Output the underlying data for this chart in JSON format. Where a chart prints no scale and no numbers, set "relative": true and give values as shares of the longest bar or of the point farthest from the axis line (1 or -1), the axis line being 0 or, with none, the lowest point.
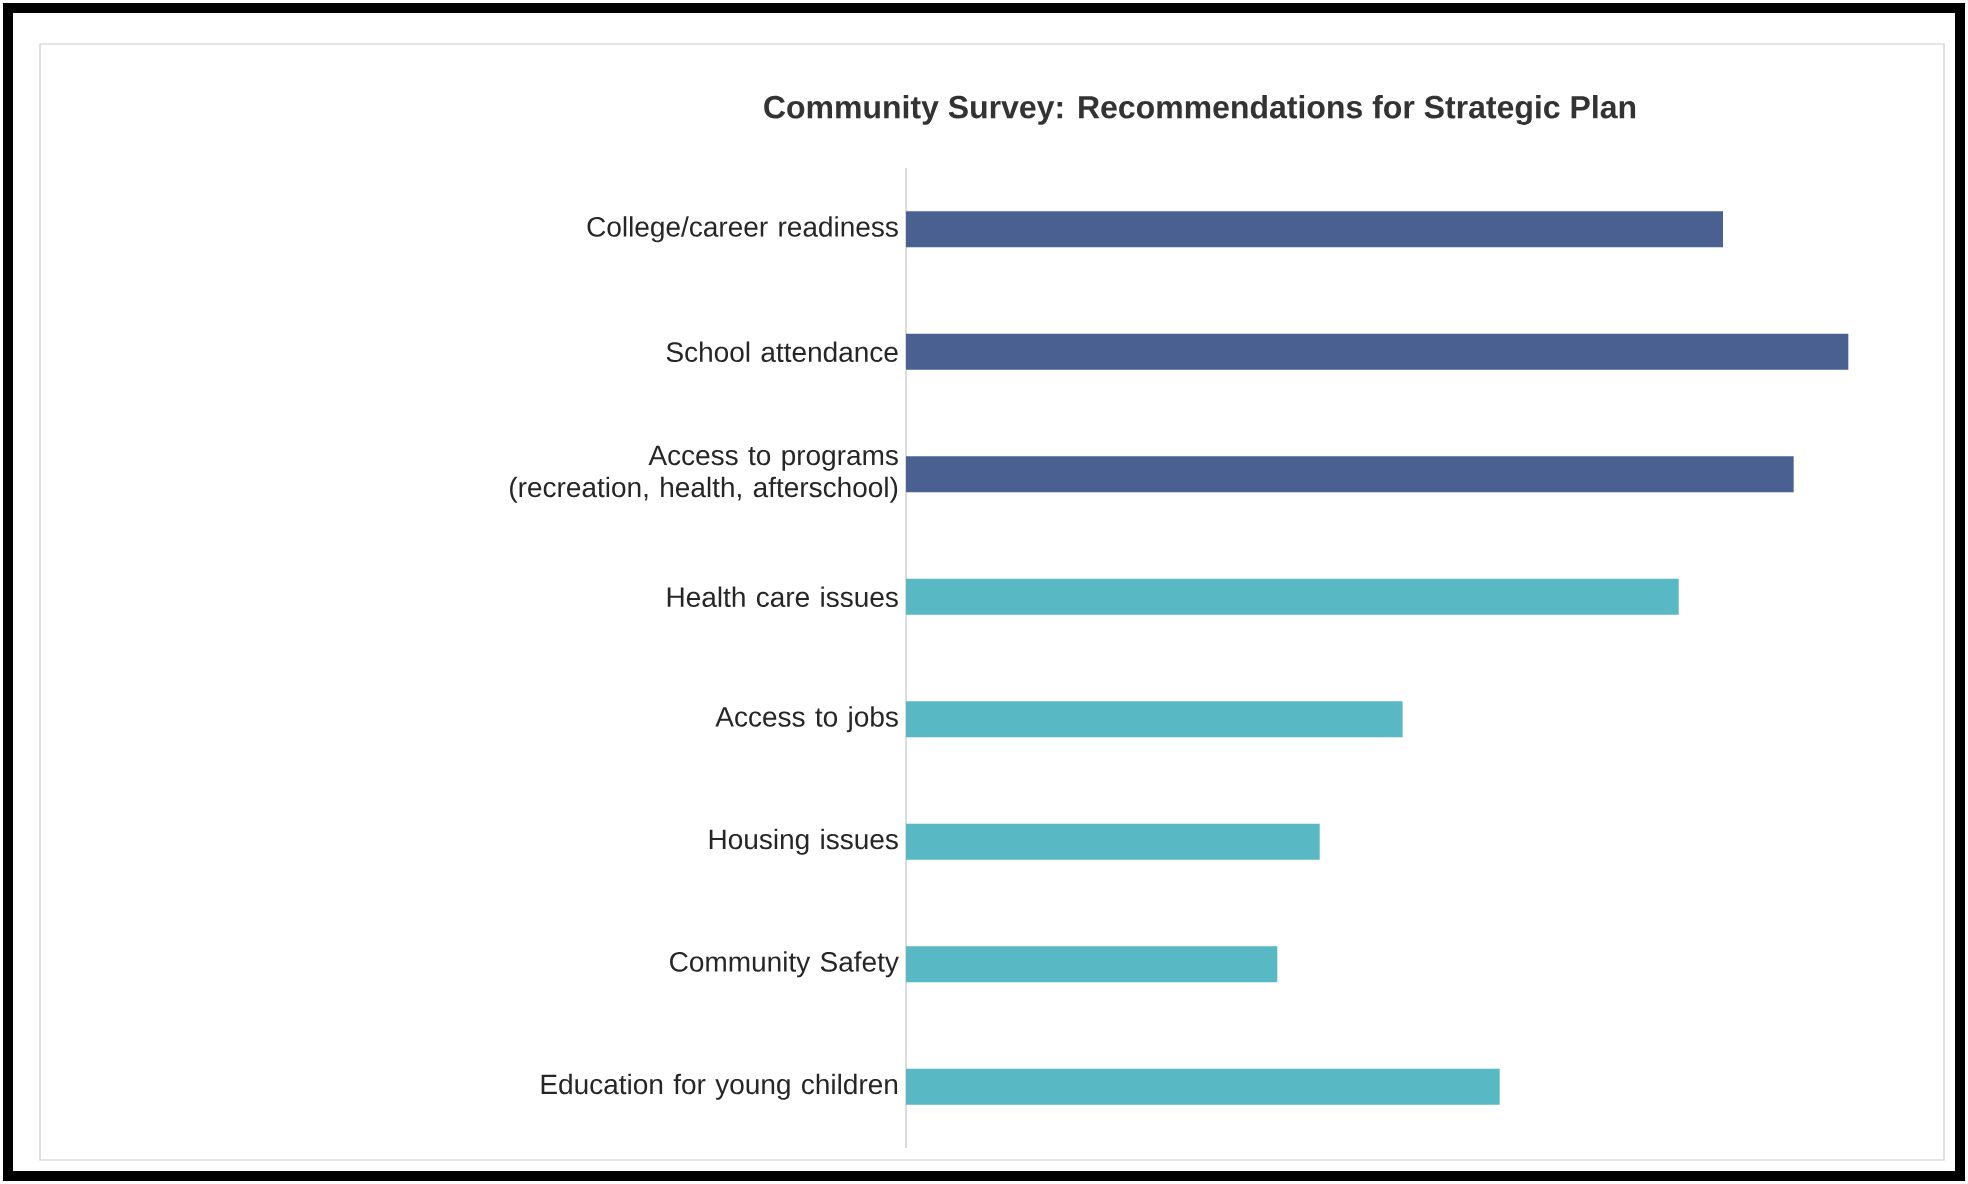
{
  "chart_data": {
    "type": "bar",
    "orientation": "horizontal",
    "relative": true,
    "title": "Community Survey: Recommendations for Strategic Plan",
    "categories": [
      "College/career readiness",
      "School attendance",
      "Access to programs (recreation, health, afterschool)",
      "Health care issues",
      "Access to jobs",
      "Housing issues",
      "Community Safety",
      "Education for young children"
    ],
    "values": [
      0.867,
      1,
      0.942,
      0.82,
      0.527,
      0.439,
      0.394,
      0.63
    ],
    "colors": [
      "#4a6090",
      "#4a6090",
      "#4a6090",
      "#58b8c4",
      "#58b8c4",
      "#58b8c4",
      "#58b8c4",
      "#58b8c4"
    ]
  }
}
